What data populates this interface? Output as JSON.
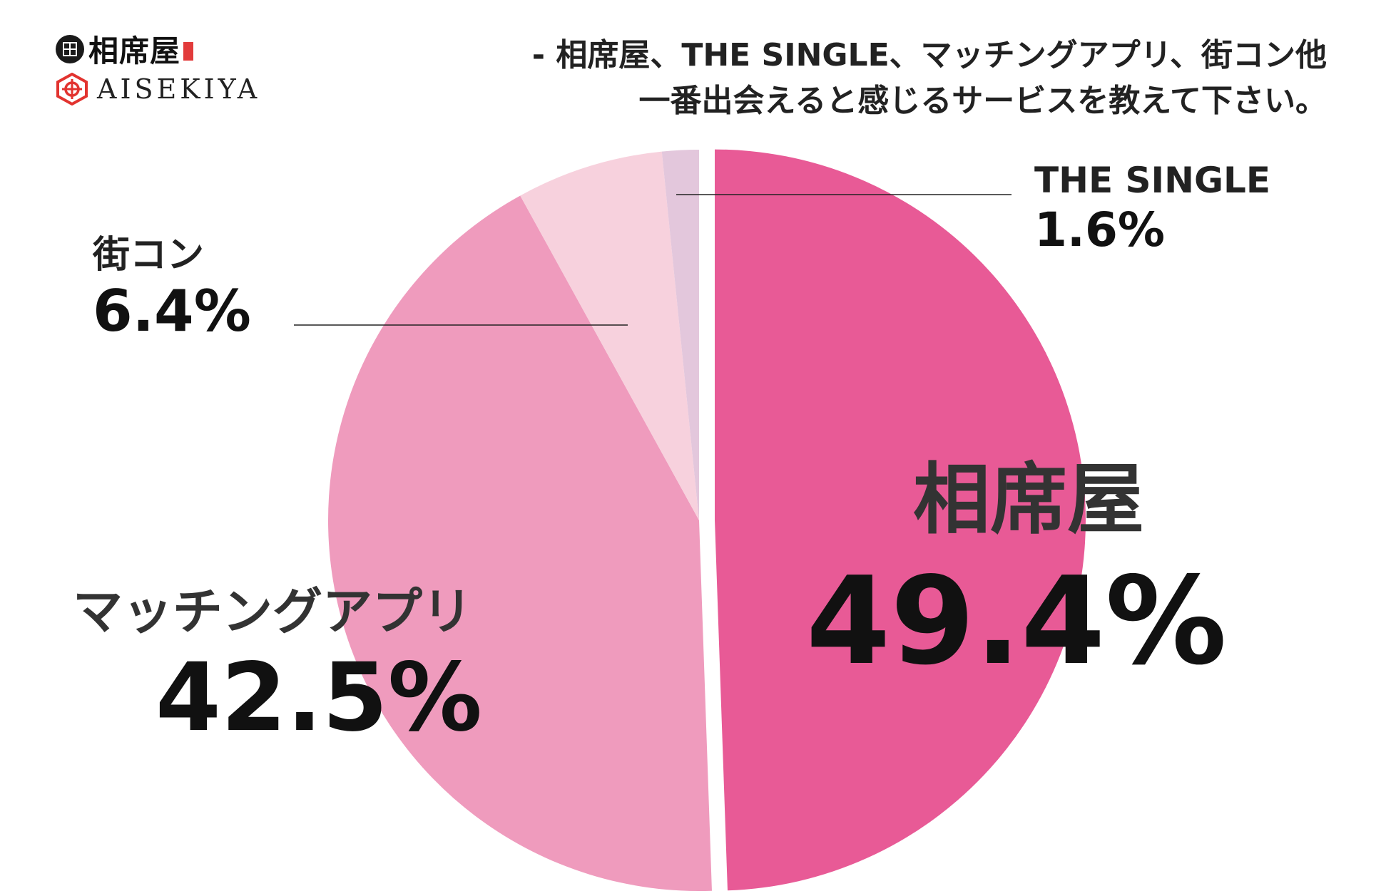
{
  "logo": {
    "jp_name": "相席屋",
    "en_name": "AISEKIYA",
    "icon": "aisekiya-crest-icon"
  },
  "question": {
    "line1": "- 相席屋、THE SINGLE、マッチングアプリ、街コン他",
    "line2": "一番出会えると感じるサービスを教えて下さい。"
  },
  "colors": {
    "highlight": "#fbf34a",
    "aisekiya": "#e85a96",
    "matching_app": "#ef9bbd",
    "machikon": "#f7d1dd",
    "the_single": "#e3c7dc",
    "leader": "#222222"
  },
  "chart_data": {
    "type": "pie",
    "start": "12 o'clock",
    "direction": "clockwise",
    "exploded": "相席屋",
    "slices": [
      {
        "label": "相席屋",
        "value": 49.4,
        "display": "49.4%",
        "color": "#e85a96"
      },
      {
        "label": "マッチングアプリ",
        "value": 42.5,
        "display": "42.5%",
        "color": "#ef9bbd"
      },
      {
        "label": "街コン",
        "value": 6.4,
        "display": "6.4%",
        "color": "#f7d1dd"
      },
      {
        "label": "THE SINGLE",
        "value": 1.6,
        "display": "1.6%",
        "color": "#e3c7dc"
      }
    ]
  }
}
